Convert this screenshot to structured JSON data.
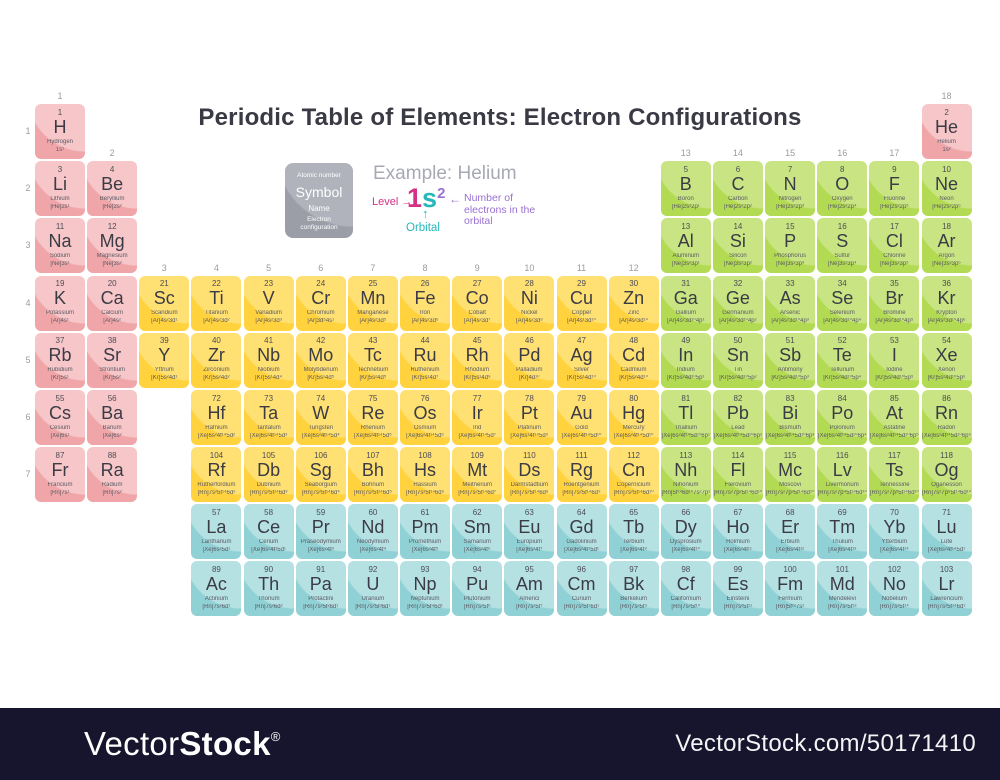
{
  "title": "Periodic Table of Elements: Electron Configurations",
  "legend_cell": {
    "atomic_number": "Atomic number",
    "symbol": "Symbol",
    "name": "Name",
    "config": "Electron configuration"
  },
  "example": {
    "heading": "Example: Helium",
    "level_label": "Level",
    "level_value": "1",
    "orbital_value": "s",
    "electrons_value": "2",
    "electrons_label": "Number of electrons in the orbital",
    "orbital_label": "Orbital",
    "arrow_right": "→",
    "arrow_left": "←",
    "arrow_up": "↑"
  },
  "axis": {
    "groups": [
      [
        "1",
        1,
        1
      ],
      [
        "2",
        2,
        2
      ],
      [
        "3",
        3,
        4
      ],
      [
        "4",
        4,
        4
      ],
      [
        "5",
        5,
        4
      ],
      [
        "6",
        6,
        4
      ],
      [
        "7",
        7,
        4
      ],
      [
        "8",
        8,
        4
      ],
      [
        "9",
        9,
        4
      ],
      [
        "10",
        10,
        4
      ],
      [
        "11",
        11,
        4
      ],
      [
        "12",
        12,
        4
      ],
      [
        "13",
        13,
        2
      ],
      [
        "14",
        14,
        2
      ],
      [
        "15",
        15,
        2
      ],
      [
        "16",
        16,
        2
      ],
      [
        "17",
        17,
        2
      ],
      [
        "18",
        18,
        1
      ]
    ],
    "periods": [
      "1",
      "2",
      "3",
      "4",
      "5",
      "6",
      "7"
    ]
  },
  "colors": {
    "s": {
      "main": "#F0A6A9",
      "light": "#F6C6C8"
    },
    "d": {
      "main": "#FFD23E",
      "light": "#FFE072"
    },
    "p": {
      "main": "#B2DA52",
      "light": "#C9E583"
    },
    "f": {
      "main": "#90D1D5",
      "light": "#B5E1E3"
    },
    "legend": {
      "main": "#9B9DA7",
      "light": "#B1B3BC"
    },
    "example": {
      "magenta": "#D62F87",
      "teal": "#26B7BA",
      "purple": "#9A70D0"
    },
    "title_text": "#3A3A45",
    "label_text": "#9B9BA3",
    "watermark_bg": "#17152D"
  },
  "watermark": {
    "logo_vector": "Vector",
    "logo_stock": "Stock",
    "reg": "®",
    "url": "VectorStock.com/50171410"
  },
  "elements": [
    [
      1,
      "H",
      "Hydrogen",
      "1s¹",
      "s",
      1,
      1
    ],
    [
      2,
      "He",
      "Helium",
      "1s²",
      "s",
      1,
      18
    ],
    [
      3,
      "Li",
      "Lithium",
      "[He]2s¹",
      "s",
      2,
      1
    ],
    [
      4,
      "Be",
      "Beryllium",
      "[He]2s²",
      "s",
      2,
      2
    ],
    [
      5,
      "B",
      "Boron",
      "[He]2s²2p¹",
      "p",
      2,
      13
    ],
    [
      6,
      "C",
      "Carbon",
      "[He]2s²2p²",
      "p",
      2,
      14
    ],
    [
      7,
      "N",
      "Nitrogen",
      "[He]2s²2p³",
      "p",
      2,
      15
    ],
    [
      8,
      "O",
      "Oxygen",
      "[He]2s²2p⁴",
      "p",
      2,
      16
    ],
    [
      9,
      "F",
      "Fluorine",
      "[He]2s²2p⁵",
      "p",
      2,
      17
    ],
    [
      10,
      "Ne",
      "Neon",
      "[He]2s²2p⁶",
      "p",
      2,
      18
    ],
    [
      11,
      "Na",
      "Sodium",
      "[Ne]3s¹",
      "s",
      3,
      1
    ],
    [
      12,
      "Mg",
      "Magnesium",
      "[Ne]3s²",
      "s",
      3,
      2
    ],
    [
      13,
      "Al",
      "Aluminum",
      "[Ne]3s²3p¹",
      "p",
      3,
      13
    ],
    [
      14,
      "Si",
      "Silicon",
      "[Ne]3s²3p²",
      "p",
      3,
      14
    ],
    [
      15,
      "P",
      "Phosphorus",
      "[Ne]3s²3p³",
      "p",
      3,
      15
    ],
    [
      16,
      "S",
      "Sulfur",
      "[Ne]3s²3p⁴",
      "p",
      3,
      16
    ],
    [
      17,
      "Cl",
      "Chlorine",
      "[Ne]3s²3p⁵",
      "p",
      3,
      17
    ],
    [
      18,
      "Ar",
      "Argon",
      "[Ne]3s²3p⁶",
      "p",
      3,
      18
    ],
    [
      19,
      "K",
      "Potassium",
      "[Ar]4s¹",
      "s",
      4,
      1
    ],
    [
      20,
      "Ca",
      "Calcium",
      "[Ar]4s²",
      "s",
      4,
      2
    ],
    [
      21,
      "Sc",
      "Scandium",
      "[Ar]4s²3d¹",
      "d",
      4,
      3
    ],
    [
      22,
      "Ti",
      "Titanium",
      "[Ar]4s²3d²",
      "d",
      4,
      4
    ],
    [
      23,
      "V",
      "Vanadium",
      "[Ar]4s²3d³",
      "d",
      4,
      5
    ],
    [
      24,
      "Cr",
      "Chromium",
      "[Ar]3d⁵4s¹",
      "d",
      4,
      6
    ],
    [
      25,
      "Mn",
      "Manganese",
      "[Ar]4s²3d⁵",
      "d",
      4,
      7
    ],
    [
      26,
      "Fe",
      "Iron",
      "[Ar]4s²3d⁶",
      "d",
      4,
      8
    ],
    [
      27,
      "Co",
      "Cobalt",
      "[Ar]4s²3d⁷",
      "d",
      4,
      9
    ],
    [
      28,
      "Ni",
      "Nickel",
      "[Ar]4s²3d⁸",
      "d",
      4,
      10
    ],
    [
      29,
      "Cu",
      "Copper",
      "[Ar]4s¹3d¹⁰",
      "d",
      4,
      11
    ],
    [
      30,
      "Zn",
      "Zinc",
      "[Ar]4s²3d¹⁰",
      "d",
      4,
      12
    ],
    [
      31,
      "Ga",
      "Gallium",
      "[Ar]4s²3d¹⁰4p¹",
      "p",
      4,
      13
    ],
    [
      32,
      "Ge",
      "Germanium",
      "[Ar]4s²3d¹⁰4p²",
      "p",
      4,
      14
    ],
    [
      33,
      "As",
      "Arsenic",
      "[Ar]4s²3d¹⁰4p³",
      "p",
      4,
      15
    ],
    [
      34,
      "Se",
      "Selenium",
      "[Ar]4s²3d¹⁰4p⁴",
      "p",
      4,
      16
    ],
    [
      35,
      "Br",
      "Bromine",
      "[Ar]4s²3d¹⁰4p⁵",
      "p",
      4,
      17
    ],
    [
      36,
      "Kr",
      "Krypton",
      "[Ar]4s²3d¹⁰4p⁶",
      "p",
      4,
      18
    ],
    [
      37,
      "Rb",
      "Rubidium",
      "[Kr]5s¹",
      "s",
      5,
      1
    ],
    [
      38,
      "Sr",
      "Strontium",
      "[Kr]5s²",
      "s",
      5,
      2
    ],
    [
      39,
      "Y",
      "Yttrium",
      "[Kr]5s²4d¹",
      "d",
      5,
      3
    ],
    [
      40,
      "Zr",
      "Zirconium",
      "[Kr]5s²4d²",
      "d",
      5,
      4
    ],
    [
      41,
      "Nb",
      "Niobium",
      "[Kr]5s¹4d⁴",
      "d",
      5,
      5
    ],
    [
      42,
      "Mo",
      "Molybdenum",
      "[Kr]5s¹4d⁵",
      "d",
      5,
      6
    ],
    [
      43,
      "Tc",
      "Technetium",
      "[Kr]5s²4d⁵",
      "d",
      5,
      7
    ],
    [
      44,
      "Ru",
      "Ruthenium",
      "[Kr]5s¹4d⁷",
      "d",
      5,
      8
    ],
    [
      45,
      "Rh",
      "Rhodium",
      "[Kr]5s¹4d⁸",
      "d",
      5,
      9
    ],
    [
      46,
      "Pd",
      "Palladium",
      "[Kr]4d¹⁰",
      "d",
      5,
      10
    ],
    [
      47,
      "Ag",
      "Silver",
      "[Kr]5s¹4d¹⁰",
      "d",
      5,
      11
    ],
    [
      48,
      "Cd",
      "Cadmium",
      "[Kr]5s²4d¹⁰",
      "d",
      5,
      12
    ],
    [
      49,
      "In",
      "Indium",
      "[Kr]5s²4d¹⁰5p¹",
      "p",
      5,
      13
    ],
    [
      50,
      "Sn",
      "Tin",
      "[Kr]5s²4d¹⁰5p²",
      "p",
      5,
      14
    ],
    [
      51,
      "Sb",
      "Antimony",
      "[Kr]5s²4d¹⁰5p³",
      "p",
      5,
      15
    ],
    [
      52,
      "Te",
      "Tellurium",
      "[Kr]5s²4d¹⁰5p⁴",
      "p",
      5,
      16
    ],
    [
      53,
      "I",
      "Iodine",
      "[Kr]5s²4d¹⁰5p⁵",
      "p",
      5,
      17
    ],
    [
      54,
      "Xe",
      "Xenon",
      "[Kr]5s²4d¹⁰5p⁶",
      "p",
      5,
      18
    ],
    [
      55,
      "Cs",
      "Cesium",
      "[Xe]6s¹",
      "s",
      6,
      1
    ],
    [
      56,
      "Ba",
      "Barium",
      "[Xe]6s²",
      "s",
      6,
      2
    ],
    [
      57,
      "La",
      "Lanthanum",
      "[Xe]6s²5d¹",
      "f",
      8,
      4
    ],
    [
      58,
      "Ce",
      "Cerium",
      "[Xe]6s²4f¹5d¹",
      "f",
      8,
      5
    ],
    [
      59,
      "Pr",
      "Praseodymium",
      "[Xe]6s²4f³",
      "f",
      8,
      6
    ],
    [
      60,
      "Nd",
      "Neodymium",
      "[Xe]6s²4f⁴",
      "f",
      8,
      7
    ],
    [
      61,
      "Pm",
      "Promethium",
      "[Xe]6s²4f⁵",
      "f",
      8,
      8
    ],
    [
      62,
      "Sm",
      "Samarium",
      "[Xe]6s²4f⁶",
      "f",
      8,
      9
    ],
    [
      63,
      "Eu",
      "Europium",
      "[Xe]6s²4f⁷",
      "f",
      8,
      10
    ],
    [
      64,
      "Gd",
      "Gadolinium",
      "[Xe]6s²4f⁷5d¹",
      "f",
      8,
      11
    ],
    [
      65,
      "Tb",
      "Terbium",
      "[Xe]6s²4f⁹",
      "f",
      8,
      12
    ],
    [
      66,
      "Dy",
      "Dysprosium",
      "[Xe]6s²4f¹⁰",
      "f",
      8,
      13
    ],
    [
      67,
      "Ho",
      "Holmium",
      "[Xe]6s²4f¹¹",
      "f",
      8,
      14
    ],
    [
      68,
      "Er",
      "Erbium",
      "[Xe]6s²4f¹²",
      "f",
      8,
      15
    ],
    [
      69,
      "Tm",
      "Thulium",
      "[Xe]6s²4f¹³",
      "f",
      8,
      16
    ],
    [
      70,
      "Yb",
      "Ytterbium",
      "[Xe]6s²4f¹⁴",
      "f",
      8,
      17
    ],
    [
      71,
      "Lu",
      "Lute",
      "[Xe]6s²4f¹⁴5d¹",
      "f",
      8,
      18
    ],
    [
      72,
      "Hf",
      "Hafnium",
      "[Xe]6s²4f¹⁴5d²",
      "d",
      6,
      4
    ],
    [
      73,
      "Ta",
      "Tantalum",
      "[Xe]6s²4f¹⁴5d³",
      "d",
      6,
      5
    ],
    [
      74,
      "W",
      "Tungsten",
      "[Xe]6s²4f¹⁴5d⁴",
      "d",
      6,
      6
    ],
    [
      75,
      "Re",
      "Rhenium",
      "[Xe]6s²4f¹⁴5d⁵",
      "d",
      6,
      7
    ],
    [
      76,
      "Os",
      "Osmium",
      "[Xe]6s²4f¹⁴5d⁶",
      "d",
      6,
      8
    ],
    [
      77,
      "Ir",
      "Irid",
      "[Xe]6s²4f¹⁴5d⁷",
      "d",
      6,
      9
    ],
    [
      78,
      "Pt",
      "Platinum",
      "[Xe]6s¹4f¹⁴5d⁹",
      "d",
      6,
      10
    ],
    [
      79,
      "Au",
      "Gold",
      "[Xe]6s¹4f¹⁴5d¹⁰",
      "d",
      6,
      11
    ],
    [
      80,
      "Hg",
      "Mercury",
      "[Xe]6s²4f¹⁴5d¹⁰",
      "d",
      6,
      12
    ],
    [
      81,
      "Tl",
      "Thallium",
      "[Xe]6s²4f¹⁴5d¹⁰6p¹",
      "p",
      6,
      13
    ],
    [
      82,
      "Pb",
      "Lead",
      "[Xe]6s²4f¹⁴5d¹⁰6p²",
      "p",
      6,
      14
    ],
    [
      83,
      "Bi",
      "Bismuth",
      "[Xe]6s²4f¹⁴5d¹⁰6p³",
      "p",
      6,
      15
    ],
    [
      84,
      "Po",
      "Polonium",
      "[Xe]6s²4f¹⁴5d¹⁰6p⁴",
      "p",
      6,
      16
    ],
    [
      85,
      "At",
      "Astatine",
      "[Xe]6s²4f¹⁴5d¹⁰6p⁵",
      "p",
      6,
      17
    ],
    [
      86,
      "Rn",
      "Radon",
      "[Xe]6s²4f¹⁴5d¹⁰6p⁶",
      "p",
      6,
      18
    ],
    [
      87,
      "Fr",
      "Francium",
      "[Rn]7s¹",
      "s",
      7,
      1
    ],
    [
      88,
      "Ra",
      "Radium",
      "[Rn]7s²",
      "s",
      7,
      2
    ],
    [
      89,
      "Ac",
      "Actinium",
      "[Rn]7s²6d¹",
      "f",
      9,
      4
    ],
    [
      90,
      "Th",
      "Thorium",
      "[Rn]7s²6d²",
      "f",
      9,
      5
    ],
    [
      91,
      "Pa",
      "Protactini",
      "[Rn]7s²5f²6d¹",
      "f",
      9,
      6
    ],
    [
      92,
      "U",
      "Uranium",
      "[Rn]7s²5f³6d¹",
      "f",
      9,
      7
    ],
    [
      93,
      "Np",
      "Neptunium",
      "[Rn]7s²5f⁴6d¹",
      "f",
      9,
      8
    ],
    [
      94,
      "Pu",
      "Plutonium",
      "[Rn]7s²5f⁶",
      "f",
      9,
      9
    ],
    [
      95,
      "Am",
      "Americi",
      "[Rn]7s²5f⁷",
      "f",
      9,
      10
    ],
    [
      96,
      "Cm",
      "Curium",
      "[Rn]7s²5f⁷6d¹",
      "f",
      9,
      11
    ],
    [
      97,
      "Bk",
      "Berkelium",
      "[Rn]7s²5f⁹",
      "f",
      9,
      12
    ],
    [
      98,
      "Cf",
      "Californium",
      "[Rn]7s²5f¹⁰",
      "f",
      9,
      13
    ],
    [
      99,
      "Es",
      "Einsteini",
      "[Rn]7s²5f¹¹",
      "f",
      9,
      14
    ],
    [
      100,
      "Fm",
      "Fermium",
      "[Rn]5f¹²7s²",
      "f",
      9,
      15
    ],
    [
      101,
      "Md",
      "Mendelevi",
      "[Rn]7s²5f¹³",
      "f",
      9,
      16
    ],
    [
      102,
      "No",
      "Nobelium",
      "[Rn]7s²5f¹⁴",
      "f",
      9,
      17
    ],
    [
      103,
      "Lr",
      "Lawrencium",
      "[Rn]7s²5f¹⁴6d¹",
      "f",
      9,
      18
    ],
    [
      104,
      "Rf",
      "Rutherfordium",
      "[Rn]7s²5f¹⁴6d²",
      "d",
      7,
      4
    ],
    [
      105,
      "Db",
      "Dubnium",
      "[Rn]7s²5f¹⁴6d³",
      "d",
      7,
      5
    ],
    [
      106,
      "Sg",
      "Seaborgium",
      "[Rn]7s²5f¹⁴6d⁴",
      "d",
      7,
      6
    ],
    [
      107,
      "Bh",
      "Bohrium",
      "[Rn]7s²5f¹⁴6d⁵",
      "d",
      7,
      7
    ],
    [
      108,
      "Hs",
      "Hassium",
      "[Rn]7s²5f¹⁴6d⁶",
      "d",
      7,
      8
    ],
    [
      109,
      "Mt",
      "Meitnerium",
      "[Rn]7s²5f¹⁴6d⁷",
      "d",
      7,
      9
    ],
    [
      110,
      "Ds",
      "Darmstadtium",
      "[Rn]7s²5f¹⁴6d⁸",
      "d",
      7,
      10
    ],
    [
      111,
      "Rg",
      "Roentgenium",
      "[Rn]7s²5f¹⁴6d⁹",
      "d",
      7,
      11
    ],
    [
      112,
      "Cn",
      "Copernicium",
      "[Rn]7s²5f¹⁴6d¹⁰",
      "d",
      7,
      12
    ],
    [
      113,
      "Nh",
      "Nihonium",
      "[Rn]5f¹⁴6d¹⁰7s²7p¹",
      "p",
      7,
      13
    ],
    [
      114,
      "Fl",
      "Flerovium",
      "[Rn]7s²7p²5f¹⁴6d¹⁰",
      "p",
      7,
      14
    ],
    [
      115,
      "Mc",
      "Moscovi",
      "[Rn]7s²7p³5f¹⁴6d¹⁰",
      "p",
      7,
      15
    ],
    [
      116,
      "Lv",
      "Livermorium",
      "[Rn]7s²7p⁴5f¹⁴6d¹⁰",
      "p",
      7,
      16
    ],
    [
      117,
      "Ts",
      "Tennessine",
      "[Rn]7s²7p⁵5f¹⁴6d¹⁰",
      "p",
      7,
      17
    ],
    [
      118,
      "Og",
      "Oganesson",
      "[Rn]7s²7p⁶5f¹⁴6d¹⁰",
      "p",
      7,
      18
    ]
  ]
}
